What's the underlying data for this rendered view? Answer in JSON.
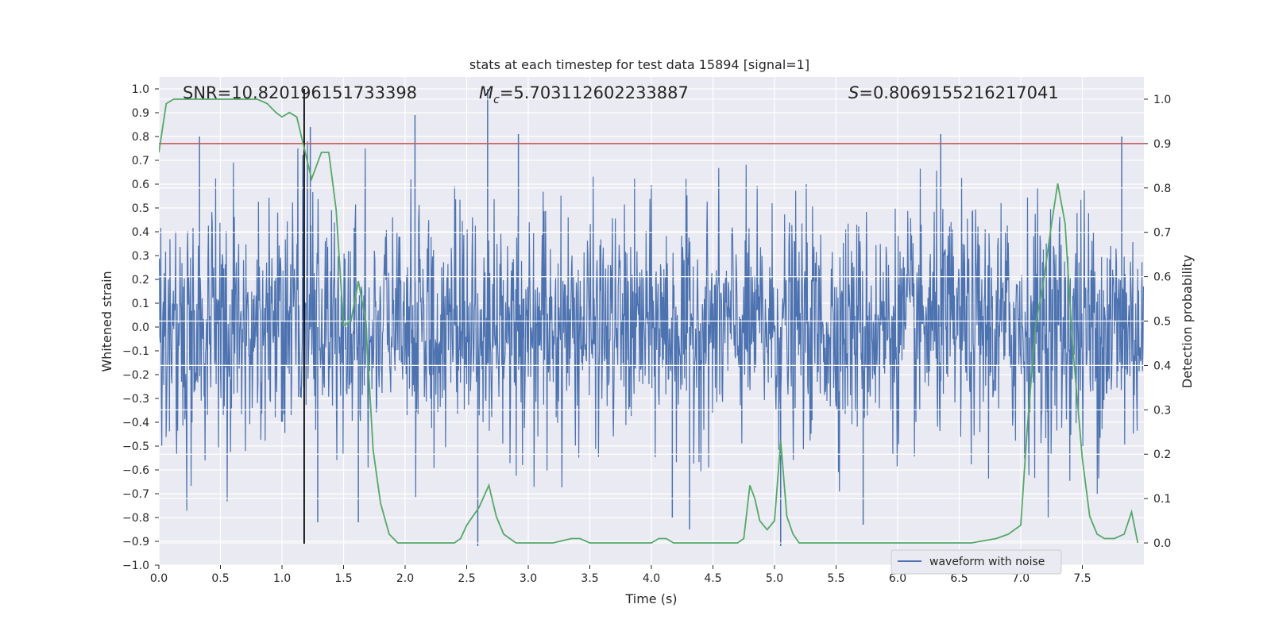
{
  "chart_data": {
    "type": "line",
    "title": "stats at each timestep for test data 15894 [signal=1]",
    "xlabel": "Time (s)",
    "ylabel": "Whitened strain",
    "y2label": "Detection probability",
    "xlim": [
      0.0,
      8.0
    ],
    "ylim": [
      -1.0,
      1.05
    ],
    "y2lim": [
      -0.05,
      1.05
    ],
    "xticks": [
      "0.0",
      "0.5",
      "1.0",
      "1.5",
      "2.0",
      "2.5",
      "3.0",
      "3.5",
      "4.0",
      "4.5",
      "5.0",
      "5.5",
      "6.0",
      "6.5",
      "7.0",
      "7.5"
    ],
    "yticks": [
      "-1.0",
      "-0.9",
      "-0.8",
      "-0.7",
      "-0.6",
      "-0.5",
      "-0.4",
      "-0.3",
      "-0.2",
      "-0.1",
      "0.0",
      "0.1",
      "0.2",
      "0.3",
      "0.4",
      "0.5",
      "0.6",
      "0.7",
      "0.8",
      "0.9",
      "1.0"
    ],
    "y2ticks": [
      "0.0",
      "0.1",
      "0.2",
      "0.3",
      "0.4",
      "0.5",
      "0.6",
      "0.7",
      "0.8",
      "0.9",
      "1.0"
    ],
    "grid": true,
    "legend_position": "lower-right",
    "annotations": {
      "snr": "SNR=10.820196151733398",
      "mc_symbol": "M",
      "mc_sub": "c",
      "mc_value": "=5.703112602233887",
      "s_symbol": "S",
      "s_value": "=0.8069155216217041"
    },
    "threshold": 0.9,
    "threshold_color": "#c44e52",
    "marker_time": 1.18,
    "marker_top": 1.0,
    "marker_bottom": -0.91,
    "series": [
      {
        "name": "waveform with noise",
        "axis": "left",
        "color": "#4c72b0",
        "sample_rate": 256,
        "envelope_x": [
          0.0,
          1.0,
          1.5,
          2.0,
          2.5,
          3.0,
          3.5,
          4.0,
          4.5,
          5.0,
          5.5,
          6.0,
          6.5,
          7.0,
          7.5,
          8.0
        ],
        "envelope_y": [
          0.3,
          0.32,
          0.28,
          0.27,
          0.27,
          0.27,
          0.27,
          0.27,
          0.27,
          0.27,
          0.27,
          0.27,
          0.28,
          0.3,
          0.32,
          0.3
        ],
        "peaks_x": [
          0.33,
          1.23,
          2.08,
          2.67,
          2.92,
          5.05,
          6.35,
          7.82,
          1.29,
          2.59,
          4.31,
          1.62,
          4.17,
          5.72
        ],
        "peaks_y": [
          0.8,
          0.84,
          0.89,
          1.0,
          0.81,
          -0.92,
          0.81,
          0.8,
          -0.82,
          -0.92,
          -0.85,
          -0.82,
          -0.8,
          -0.83
        ]
      },
      {
        "axis": "right",
        "color": "#55a868",
        "x": [
          0.0,
          0.06,
          0.12,
          0.2,
          0.3,
          0.5,
          0.6,
          0.7,
          0.8,
          0.88,
          0.95,
          1.0,
          1.06,
          1.12,
          1.18,
          1.24,
          1.32,
          1.38,
          1.44,
          1.5,
          1.56,
          1.62,
          1.68,
          1.74,
          1.8,
          1.87,
          1.94,
          2.0,
          2.1,
          2.2,
          2.3,
          2.4,
          2.45,
          2.5,
          2.6,
          2.68,
          2.74,
          2.8,
          2.9,
          3.0,
          3.2,
          3.35,
          3.42,
          3.5,
          3.7,
          3.9,
          4.0,
          4.06,
          4.12,
          4.18,
          4.3,
          4.45,
          4.6,
          4.7,
          4.75,
          4.8,
          4.84,
          4.88,
          4.94,
          5.0,
          5.05,
          5.1,
          5.15,
          5.2,
          5.3,
          5.5,
          5.7,
          5.8,
          6.0,
          6.2,
          6.4,
          6.6,
          6.8,
          6.9,
          7.0,
          7.05,
          7.12,
          7.18,
          7.25,
          7.3,
          7.36,
          7.42,
          7.5,
          7.56,
          7.62,
          7.68,
          7.76,
          7.84,
          7.9,
          7.95
        ],
        "values": [
          0.88,
          0.99,
          1.0,
          1.0,
          1.0,
          1.0,
          1.0,
          1.0,
          1.0,
          0.99,
          0.97,
          0.96,
          0.97,
          0.96,
          0.89,
          0.82,
          0.88,
          0.88,
          0.75,
          0.49,
          0.5,
          0.59,
          0.5,
          0.21,
          0.09,
          0.02,
          0.0,
          0.0,
          0.0,
          0.0,
          0.0,
          0.0,
          0.01,
          0.04,
          0.08,
          0.13,
          0.06,
          0.02,
          0.0,
          0.0,
          0.0,
          0.01,
          0.01,
          0.0,
          0.0,
          0.0,
          0.0,
          0.01,
          0.01,
          0.0,
          0.0,
          0.0,
          0.0,
          0.0,
          0.01,
          0.13,
          0.1,
          0.05,
          0.03,
          0.05,
          0.23,
          0.06,
          0.02,
          0.0,
          0.0,
          0.0,
          0.0,
          0.0,
          0.0,
          0.0,
          0.0,
          0.0,
          0.01,
          0.02,
          0.04,
          0.25,
          0.49,
          0.58,
          0.72,
          0.81,
          0.72,
          0.45,
          0.19,
          0.06,
          0.02,
          0.01,
          0.01,
          0.02,
          0.07,
          0.0
        ]
      }
    ]
  }
}
